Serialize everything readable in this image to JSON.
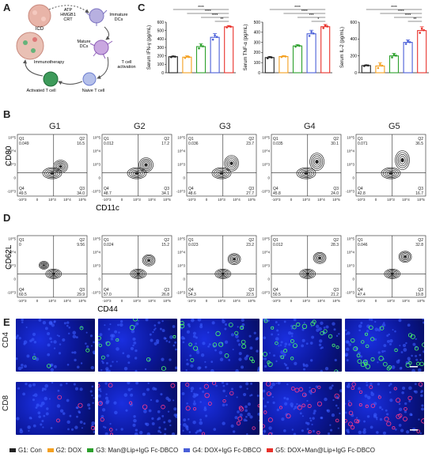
{
  "panels": {
    "A": "A",
    "B": "B",
    "C": "C",
    "D": "D",
    "E": "E"
  },
  "schematic": {
    "icd": "ICD",
    "signals": [
      "ATP",
      "HMGB1",
      "CRT"
    ],
    "immature_dcs": "Immature\nDCs",
    "mature_dcs": "Mature\nDCs",
    "tcell_activation": "T cell\nactivation",
    "immunotherapy": "Immunotherapy",
    "activated_tcell": "Activated T cell",
    "naive_tcell": "Naive T cell"
  },
  "groups": [
    "G1",
    "G2",
    "G3",
    "G4",
    "G5"
  ],
  "colors": {
    "G1": "#222222",
    "G2": "#f4a020",
    "G3": "#2ca02c",
    "G4": "#4a5fd8",
    "G5": "#e8312a"
  },
  "chart_data": [
    {
      "type": "bar",
      "title": "",
      "ylabel": "Serum IFN-γ (pg/mL)",
      "ylim": [
        0,
        600
      ],
      "yticks": [
        0,
        100,
        200,
        300,
        400,
        500,
        600
      ],
      "categories": [
        "G1",
        "G2",
        "G3",
        "G4",
        "G5"
      ],
      "values": [
        190,
        185,
        310,
        420,
        545
      ],
      "errors": [
        8,
        15,
        35,
        45,
        12
      ],
      "significance": [
        {
          "from": "G1",
          "to": "G5",
          "label": "****"
        },
        {
          "from": "G2",
          "to": "G5",
          "label": "****"
        },
        {
          "from": "G3",
          "to": "G5",
          "label": "****"
        },
        {
          "from": "G4",
          "to": "G5",
          "label": "**"
        }
      ]
    },
    {
      "type": "bar",
      "title": "",
      "ylabel": "Serum TNF-α (pg/mL)",
      "ylim": [
        0,
        500
      ],
      "yticks": [
        0,
        100,
        200,
        300,
        400,
        500
      ],
      "categories": [
        "G1",
        "G2",
        "G3",
        "G4",
        "G5"
      ],
      "values": [
        150,
        160,
        265,
        385,
        455
      ],
      "errors": [
        10,
        8,
        12,
        35,
        22
      ],
      "significance": [
        {
          "from": "G1",
          "to": "G5",
          "label": "****"
        },
        {
          "from": "G2",
          "to": "G5",
          "label": "****"
        },
        {
          "from": "G3",
          "to": "G5",
          "label": "***"
        },
        {
          "from": "G4",
          "to": "G5",
          "label": "*"
        }
      ]
    },
    {
      "type": "bar",
      "title": "",
      "ylabel": "Serum IL-2 (pg/mL)",
      "ylim": [
        0,
        600
      ],
      "yticks": [
        0,
        200,
        400,
        600
      ],
      "categories": [
        "G1",
        "G2",
        "G3",
        "G4",
        "G5"
      ],
      "values": [
        85,
        80,
        200,
        360,
        500
      ],
      "errors": [
        8,
        40,
        30,
        30,
        45
      ],
      "significance": [
        {
          "from": "G1",
          "to": "G5",
          "label": "****"
        },
        {
          "from": "G2",
          "to": "G5",
          "label": "****"
        },
        {
          "from": "G3",
          "to": "G5",
          "label": "****"
        },
        {
          "from": "G4",
          "to": "G5",
          "label": "**"
        }
      ]
    }
  ],
  "flow_B": {
    "ylabel": "CD80",
    "xlabel": "CD11c",
    "quadrants": [
      {
        "Q1": "0.049",
        "Q2": "16.5",
        "Q3": "34.0",
        "Q4": "49.5"
      },
      {
        "Q1": "0.012",
        "Q2": "17.2",
        "Q3": "34.1",
        "Q4": "48.7"
      },
      {
        "Q1": "0.036",
        "Q2": "23.7",
        "Q3": "27.7",
        "Q4": "48.6"
      },
      {
        "Q1": "0.035",
        "Q2": "30.1",
        "Q3": "24.0",
        "Q4": "45.8"
      },
      {
        "Q1": "0.071",
        "Q2": "36.5",
        "Q3": "16.7",
        "Q4": "42.8"
      }
    ]
  },
  "flow_D": {
    "ylabel": "CD62L",
    "xlabel": "CD44",
    "quadrants": [
      {
        "Q1": "0",
        "Q2": "9.56",
        "Q3": "29.9",
        "Q4": "60.5"
      },
      {
        "Q1": "0.024",
        "Q2": "15.2",
        "Q3": "26.8",
        "Q4": "57.0"
      },
      {
        "Q1": "0.023",
        "Q2": "23.2",
        "Q3": "22.5",
        "Q4": "54.3"
      },
      {
        "Q1": "0.012",
        "Q2": "28.3",
        "Q3": "21.2",
        "Q4": "50.5"
      },
      {
        "Q1": "0.046",
        "Q2": "32.8",
        "Q3": "19.8",
        "Q4": "47.4"
      }
    ]
  },
  "flow_ticks": [
    "10^5",
    "10^4",
    "10^3",
    "0",
    "-10^3"
  ],
  "flow_xticks": [
    "-10^3",
    "0",
    "10^3",
    "10^4",
    "10^5"
  ],
  "qlabels": {
    "q1": "Q1",
    "q2": "Q2",
    "q3": "Q3",
    "q4": "Q4"
  },
  "micro": {
    "row1": "CD4",
    "row2": "CD8"
  },
  "legend": [
    {
      "label": "G1: Con",
      "color": "#222222"
    },
    {
      "label": "G2: DOX",
      "color": "#f4a020"
    },
    {
      "label": "G3: Man@Lip+IgG Fc-DBCO",
      "color": "#2ca02c"
    },
    {
      "label": "G4: DOX+IgG Fc-DBCO",
      "color": "#4a5fd8"
    },
    {
      "label": "G5: DOX+Man@Lip+IgG Fc-DBCO",
      "color": "#e8312a"
    }
  ]
}
